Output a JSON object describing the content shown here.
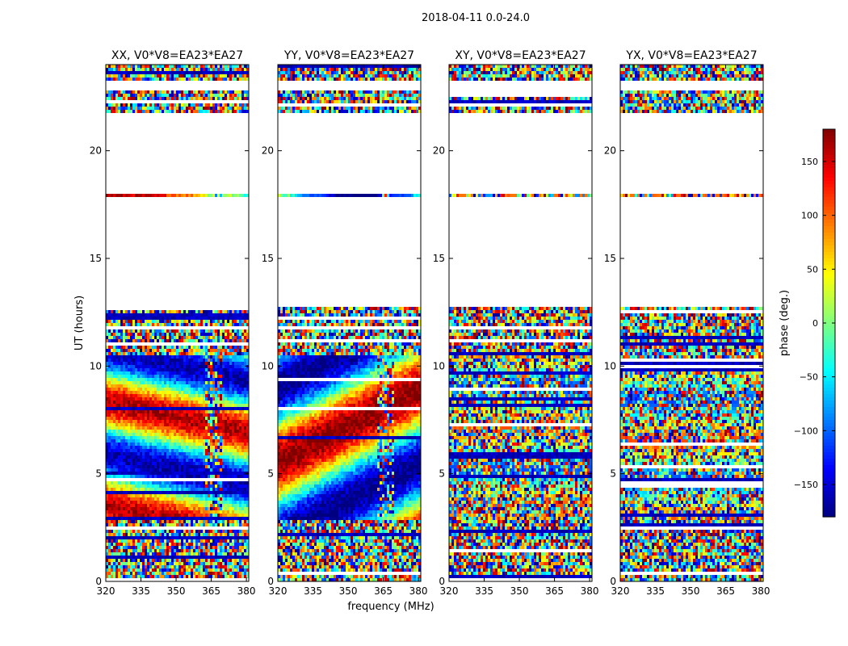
{
  "chart_data": {
    "type": "heatmap",
    "title": "2018-04-11 0.0-24.0",
    "xlabel": "frequency (MHz)",
    "ylabel": "UT (hours)",
    "xlim": [
      320,
      381
    ],
    "ylim": [
      0,
      24
    ],
    "xticks": [
      320,
      335,
      350,
      365,
      380
    ],
    "yticks": [
      0,
      5,
      10,
      15,
      20
    ],
    "panels": [
      {
        "title": "XX, V0*V8=EA23*EA27",
        "polarization": "XX"
      },
      {
        "title": "YY, V0*V8=EA23*EA27",
        "polarization": "YY"
      },
      {
        "title": "XY, V0*V8=EA23*EA27",
        "polarization": "XY"
      },
      {
        "title": "YX, V0*V8=EA23*EA27",
        "polarization": "YX"
      }
    ],
    "colorbar": {
      "label": "phase (deg.)",
      "range": [
        -180,
        180
      ],
      "ticks": [
        -150,
        -100,
        -50,
        0,
        50,
        100,
        150
      ],
      "tick_labels": [
        "−150",
        "−100",
        "−50",
        "0",
        "50",
        "100",
        "150"
      ],
      "colormap": "jet"
    },
    "data_gaps_hours": [
      [
        12.8,
        17.85
      ],
      [
        18.05,
        21.75
      ],
      [
        22.85,
        23.3
      ]
    ],
    "noise_bands_hours": [
      [
        0,
        2.8
      ],
      [
        10.5,
        12.8
      ],
      [
        21.75,
        24
      ]
    ],
    "masked_rfi_MHz": [
      362,
      370
    ]
  }
}
